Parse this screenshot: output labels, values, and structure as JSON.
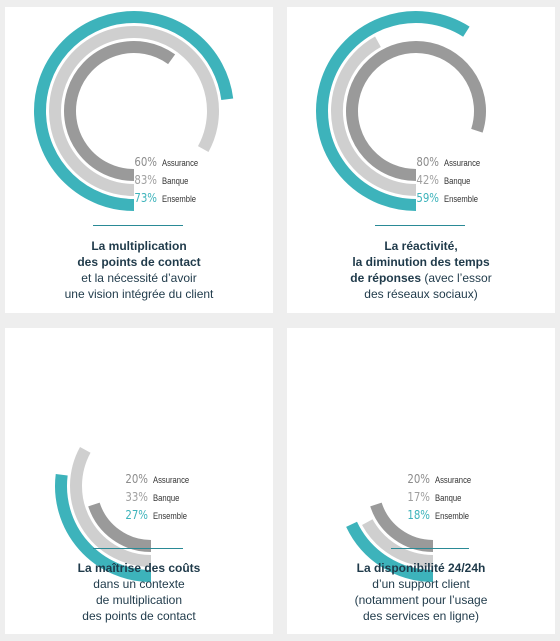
{
  "colors": {
    "assurance": "#9a9a9a",
    "banque": "#cfcfcf",
    "ensemble": "#3db3bb",
    "text_dark": "#1f3a4a"
  },
  "chart_data": [
    {
      "type": "radial-bar",
      "series": [
        {
          "name": "Assurance",
          "value": 60,
          "label": "60%"
        },
        {
          "name": "Banque",
          "value": 83,
          "label": "83%"
        },
        {
          "name": "Ensemble",
          "value": 73,
          "label": "73%"
        }
      ],
      "caption_bold": [
        "La multiplication",
        "des points de contact"
      ],
      "caption_light": [
        "et la nécessité d’avoir",
        "une vision intégrée du client"
      ]
    },
    {
      "type": "radial-bar",
      "series": [
        {
          "name": "Assurance",
          "value": 80,
          "label": "80%"
        },
        {
          "name": "Banque",
          "value": 42,
          "label": "42%"
        },
        {
          "name": "Ensemble",
          "value": 59,
          "label": "59%"
        }
      ],
      "caption_bold": [
        "La réactivité,",
        "la diminution des temps",
        "de réponses"
      ],
      "caption_light_inline": " (avec l’essor",
      "caption_light": [
        "des réseaux sociaux)"
      ]
    },
    {
      "type": "radial-bar",
      "series": [
        {
          "name": "Assurance",
          "value": 20,
          "label": "20%"
        },
        {
          "name": "Banque",
          "value": 33,
          "label": "33%"
        },
        {
          "name": "Ensemble",
          "value": 27,
          "label": "27%"
        }
      ],
      "caption_bold": [
        "La maîtrise des coûts"
      ],
      "caption_light": [
        "dans un contexte",
        "de multiplication",
        "des points de contact"
      ]
    },
    {
      "type": "radial-bar",
      "series": [
        {
          "name": "Assurance",
          "value": 20,
          "label": "20%"
        },
        {
          "name": "Banque",
          "value": 17,
          "label": "17%"
        },
        {
          "name": "Ensemble",
          "value": 18,
          "label": "18%"
        }
      ],
      "caption_bold": [
        "La disponibilité 24/24h"
      ],
      "caption_light": [
        "d’un support client",
        "(notamment pour l’usage",
        "des services en ligne)"
      ]
    }
  ]
}
